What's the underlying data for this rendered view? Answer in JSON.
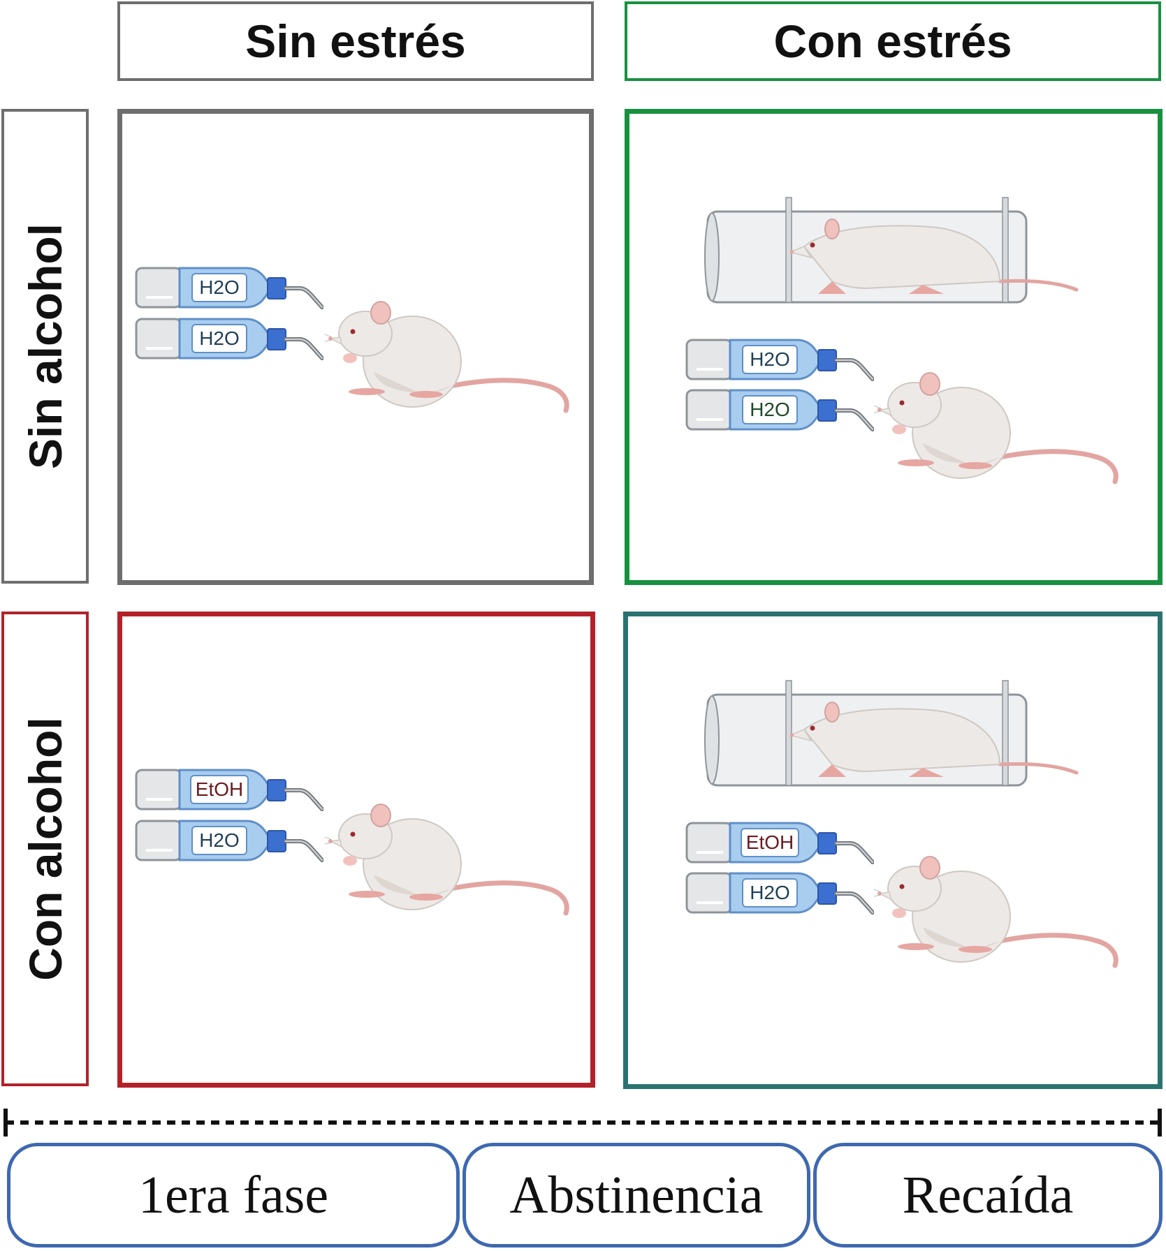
{
  "columns": [
    {
      "label": "Sin estrés",
      "color": "#6e6e6e"
    },
    {
      "label": "Con estrés",
      "color": "#17913f"
    }
  ],
  "rows": [
    {
      "label": "Sin alcohol",
      "color": "#6e6e6e"
    },
    {
      "label": "Con alcohol",
      "color": "#b3222a"
    }
  ],
  "panels": [
    {
      "id": "sin-estres-sin-alcohol",
      "border_color": "#6e6e6e",
      "restrained": false,
      "bottles": [
        "H2O",
        "H2O"
      ]
    },
    {
      "id": "con-estres-sin-alcohol",
      "border_color": "#17913f",
      "restrained": true,
      "bottles": [
        "H2O",
        "H2O"
      ]
    },
    {
      "id": "sin-estres-con-alcohol",
      "border_color": "#b3222a",
      "restrained": false,
      "bottles": [
        "EtOH",
        "H2O"
      ]
    },
    {
      "id": "con-estres-con-alcohol",
      "border_color": "#2a7370",
      "restrained": true,
      "bottles": [
        "EtOH",
        "H2O"
      ]
    }
  ],
  "timeline": {
    "phases": [
      {
        "label": "1era fase"
      },
      {
        "label": "Abstinencia"
      },
      {
        "label": "Recaída"
      }
    ],
    "phase_border_color": "#3f68b0"
  },
  "label_colors": {
    "H2O": "#1f3f55",
    "EtOH": "#6b1a1f"
  }
}
